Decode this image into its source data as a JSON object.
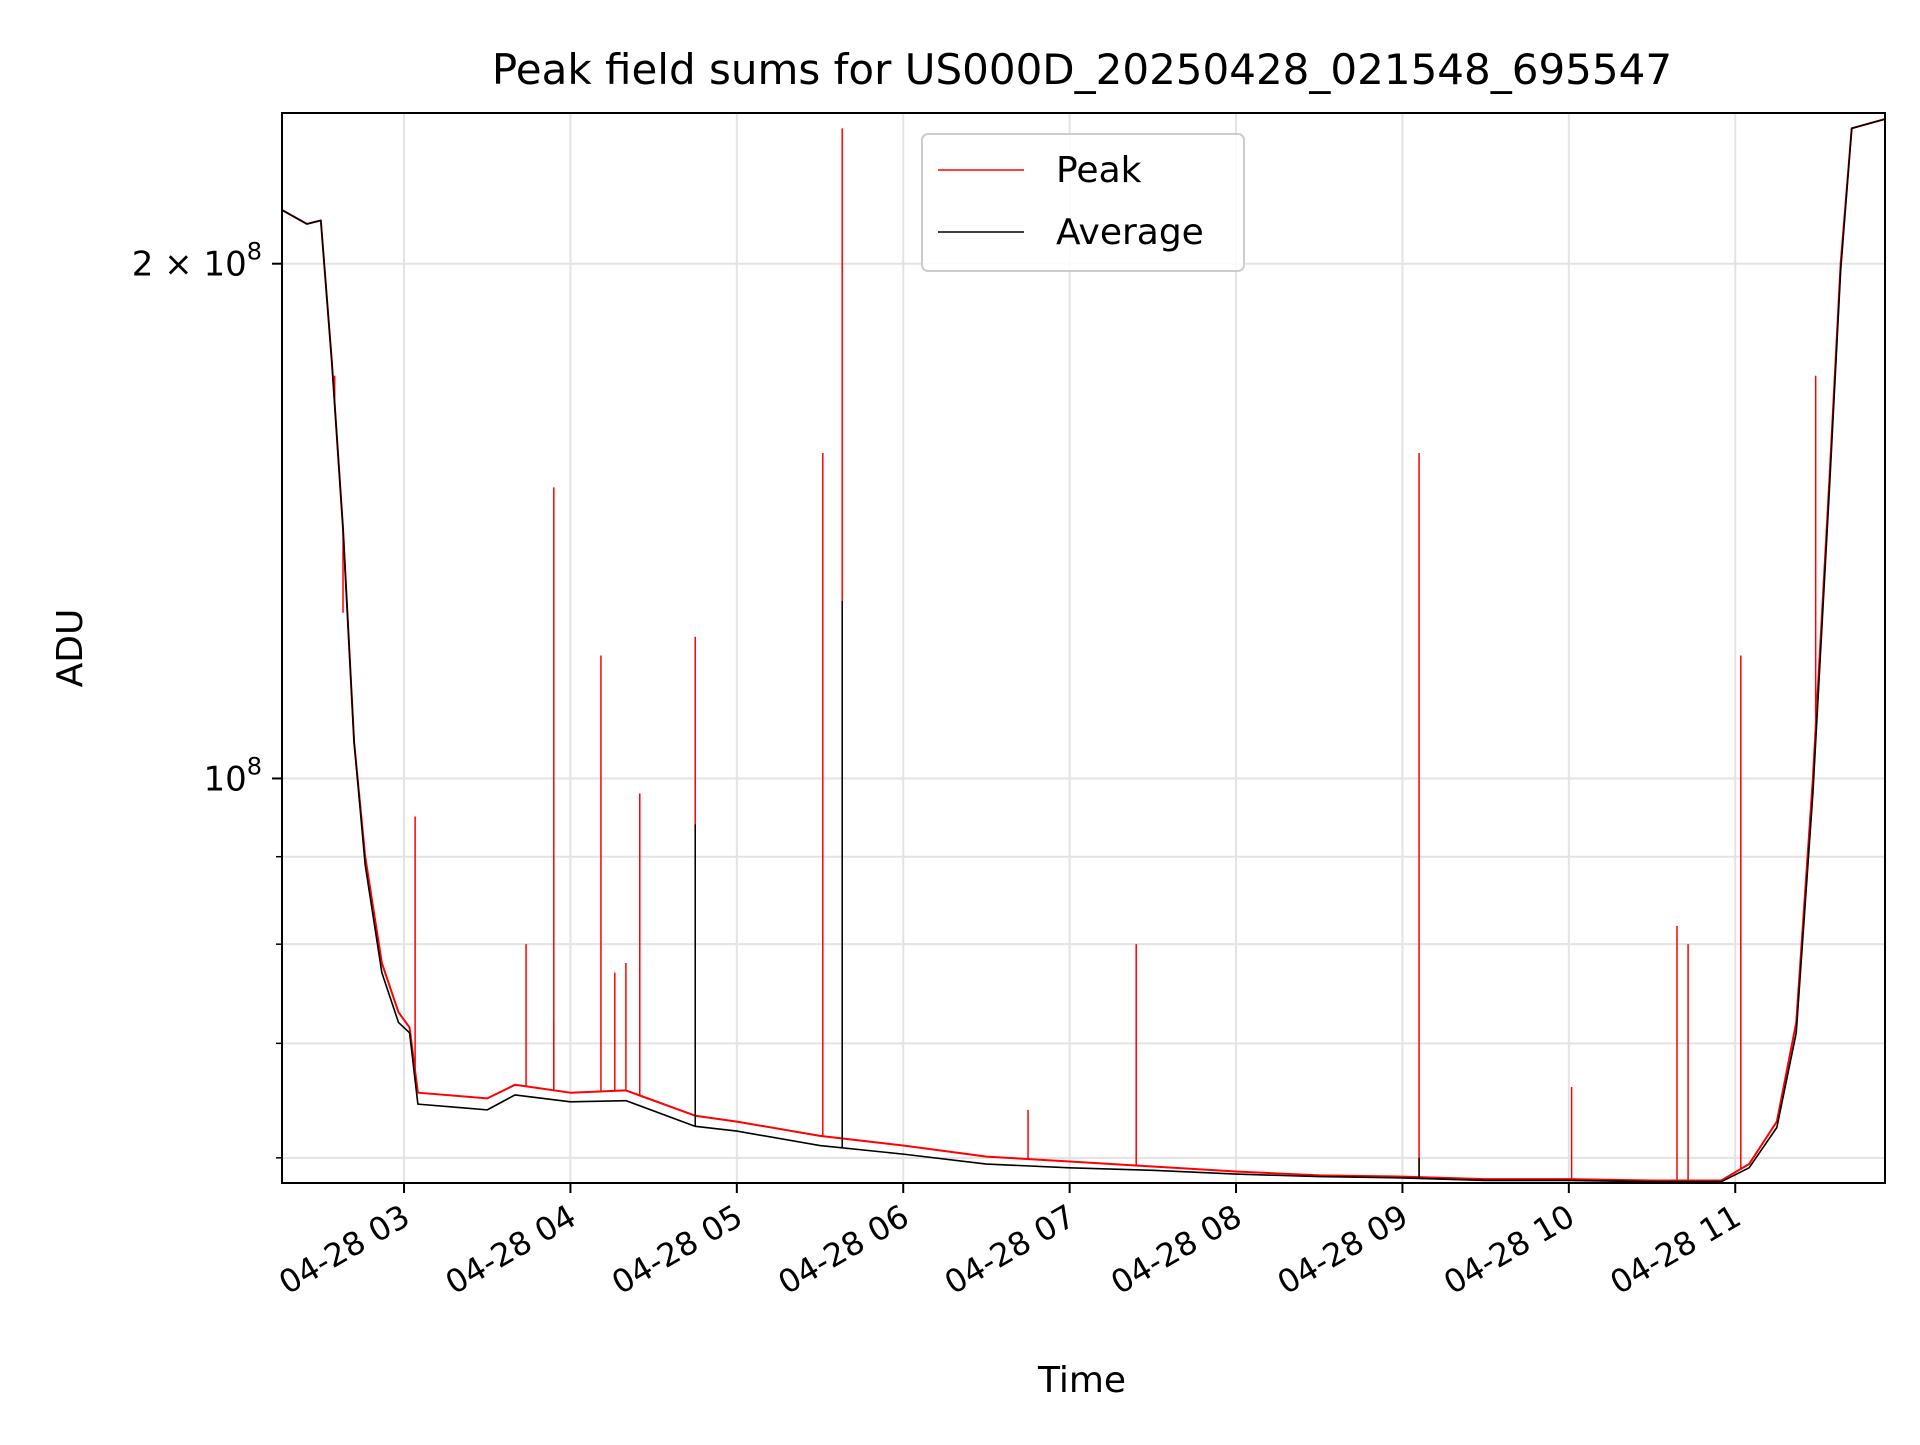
{
  "chart_data": {
    "type": "line",
    "title": "Peak field sums for US000D_20250428_021548_695547",
    "xlabel": "Time",
    "ylabel": "ADU",
    "y_scale": "log",
    "grid": true,
    "legend_position": "upper center",
    "x_range": [
      "2025-04-28 02:16",
      "2025-04-28 11:54"
    ],
    "y_range": [
      58000000,
      245000000
    ],
    "x_ticks": [
      {
        "value": "2025-04-28 03:00",
        "label": "04-28 03"
      },
      {
        "value": "2025-04-28 04:00",
        "label": "04-28 04"
      },
      {
        "value": "2025-04-28 05:00",
        "label": "04-28 05"
      },
      {
        "value": "2025-04-28 06:00",
        "label": "04-28 06"
      },
      {
        "value": "2025-04-28 07:00",
        "label": "04-28 07"
      },
      {
        "value": "2025-04-28 08:00",
        "label": "04-28 08"
      },
      {
        "value": "2025-04-28 09:00",
        "label": "04-28 09"
      },
      {
        "value": "2025-04-28 10:00",
        "label": "04-28 10"
      },
      {
        "value": "2025-04-28 11:00",
        "label": "04-28 11"
      }
    ],
    "y_ticks": [
      {
        "value": 100000000,
        "base": "10",
        "exp": "8"
      },
      {
        "value": 200000000,
        "base": "2 × 10",
        "exp": "8"
      }
    ],
    "y_minor_ticks": [
      60000000,
      70000000,
      80000000,
      90000000
    ],
    "series": [
      {
        "name": "Peak",
        "color": "#ff0000",
        "baseline": [
          [
            "2025-04-28 02:16",
            215000000
          ],
          [
            "2025-04-28 02:25",
            211000000
          ],
          [
            "2025-04-28 02:30",
            212000000
          ],
          [
            "2025-04-28 02:34",
            175000000
          ],
          [
            "2025-04-28 02:38",
            140000000
          ],
          [
            "2025-04-28 02:42",
            105000000
          ],
          [
            "2025-04-28 02:46",
            90000000
          ],
          [
            "2025-04-28 02:52",
            78000000
          ],
          [
            "2025-04-28 02:58",
            73000000
          ],
          [
            "2025-04-28 03:02",
            71500000
          ],
          [
            "2025-04-28 03:05",
            65500000
          ],
          [
            "2025-04-28 03:30",
            65000000
          ],
          [
            "2025-04-28 03:40",
            66200000
          ],
          [
            "2025-04-28 04:00",
            65500000
          ],
          [
            "2025-04-28 04:20",
            65700000
          ],
          [
            "2025-04-28 04:45",
            63500000
          ],
          [
            "2025-04-28 05:00",
            63000000
          ],
          [
            "2025-04-28 05:30",
            61800000
          ],
          [
            "2025-04-28 06:00",
            61000000
          ],
          [
            "2025-04-28 06:30",
            60100000
          ],
          [
            "2025-04-28 07:00",
            59700000
          ],
          [
            "2025-04-28 07:30",
            59300000
          ],
          [
            "2025-04-28 08:00",
            58900000
          ],
          [
            "2025-04-28 08:30",
            58600000
          ],
          [
            "2025-04-28 09:00",
            58500000
          ],
          [
            "2025-04-28 09:30",
            58300000
          ],
          [
            "2025-04-28 10:00",
            58300000
          ],
          [
            "2025-04-28 10:30",
            58200000
          ],
          [
            "2025-04-28 10:55",
            58200000
          ],
          [
            "2025-04-28 11:05",
            59500000
          ],
          [
            "2025-04-28 11:15",
            63000000
          ],
          [
            "2025-04-28 11:22",
            72000000
          ],
          [
            "2025-04-28 11:28",
            100000000
          ],
          [
            "2025-04-28 11:34",
            150000000
          ],
          [
            "2025-04-28 11:38",
            200000000
          ],
          [
            "2025-04-28 11:42",
            240000000
          ],
          [
            "2025-04-28 11:54",
            243000000
          ]
        ],
        "spikes": [
          [
            "2025-04-28 02:35",
            172000000
          ],
          [
            "2025-04-28 02:38",
            125000000
          ],
          [
            "2025-04-28 03:04",
            95000000
          ],
          [
            "2025-04-28 03:44",
            80000000
          ],
          [
            "2025-04-28 03:54",
            72000000
          ],
          [
            "2025-04-28 03:54",
            148000000
          ],
          [
            "2025-04-28 04:11",
            118000000
          ],
          [
            "2025-04-28 04:16",
            77000000
          ],
          [
            "2025-04-28 04:20",
            78000000
          ],
          [
            "2025-04-28 04:25",
            98000000
          ],
          [
            "2025-04-28 04:45",
            121000000
          ],
          [
            "2025-04-28 05:31",
            155000000
          ],
          [
            "2025-04-28 05:38",
            240000000
          ],
          [
            "2025-04-28 06:45",
            64000000
          ],
          [
            "2025-04-28 07:24",
            80000000
          ],
          [
            "2025-04-28 09:06",
            155000000
          ],
          [
            "2025-04-28 10:01",
            66000000
          ],
          [
            "2025-04-28 10:39",
            82000000
          ],
          [
            "2025-04-28 10:43",
            80000000
          ],
          [
            "2025-04-28 11:02",
            118000000
          ],
          [
            "2025-04-28 11:29",
            172000000
          ]
        ]
      },
      {
        "name": "Average",
        "color": "#000000",
        "baseline": [
          [
            "2025-04-28 02:16",
            215000000
          ],
          [
            "2025-04-28 02:25",
            211000000
          ],
          [
            "2025-04-28 02:30",
            212000000
          ],
          [
            "2025-04-28 02:34",
            175000000
          ],
          [
            "2025-04-28 02:38",
            140000000
          ],
          [
            "2025-04-28 02:42",
            105000000
          ],
          [
            "2025-04-28 02:46",
            89000000
          ],
          [
            "2025-04-28 02:52",
            77000000
          ],
          [
            "2025-04-28 02:58",
            72000000
          ],
          [
            "2025-04-28 03:02",
            71000000
          ],
          [
            "2025-04-28 03:05",
            64500000
          ],
          [
            "2025-04-28 03:20",
            64200000
          ],
          [
            "2025-04-28 03:30",
            64000000
          ],
          [
            "2025-04-28 03:40",
            65300000
          ],
          [
            "2025-04-28 04:00",
            64700000
          ],
          [
            "2025-04-28 04:20",
            64800000
          ],
          [
            "2025-04-28 04:45",
            62600000
          ],
          [
            "2025-04-28 05:00",
            62200000
          ],
          [
            "2025-04-28 05:30",
            61000000
          ],
          [
            "2025-04-28 06:00",
            60300000
          ],
          [
            "2025-04-28 06:30",
            59500000
          ],
          [
            "2025-04-28 07:00",
            59200000
          ],
          [
            "2025-04-28 07:30",
            59000000
          ],
          [
            "2025-04-28 08:00",
            58700000
          ],
          [
            "2025-04-28 08:30",
            58500000
          ],
          [
            "2025-04-28 09:00",
            58400000
          ],
          [
            "2025-04-28 09:30",
            58200000
          ],
          [
            "2025-04-28 10:00",
            58200000
          ],
          [
            "2025-04-28 10:30",
            58100000
          ],
          [
            "2025-04-28 10:55",
            58100000
          ],
          [
            "2025-04-28 11:05",
            59200000
          ],
          [
            "2025-04-28 11:15",
            62500000
          ],
          [
            "2025-04-28 11:22",
            71000000
          ],
          [
            "2025-04-28 11:28",
            98000000
          ],
          [
            "2025-04-28 11:34",
            148000000
          ],
          [
            "2025-04-28 11:38",
            198000000
          ],
          [
            "2025-04-28 11:42",
            240000000
          ],
          [
            "2025-04-28 11:54",
            243000000
          ]
        ],
        "spikes": [
          [
            "2025-04-28 04:45",
            94000000
          ],
          [
            "2025-04-28 05:38",
            127000000
          ],
          [
            "2025-04-28 09:06",
            60000000
          ]
        ]
      }
    ]
  }
}
